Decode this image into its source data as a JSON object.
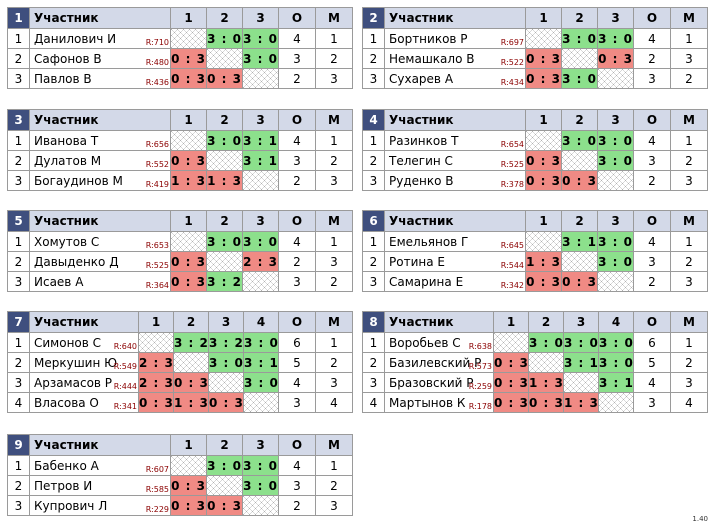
{
  "header_label": "Участник",
  "version": "1.40",
  "groups": [
    {
      "number": "1",
      "cols": [
        "1",
        "2",
        "3"
      ],
      "o_label": "О",
      "m_label": "М",
      "players": [
        {
          "name": "Данилович И",
          "rating": "R:710",
          "cells": [
            "",
            "3 : 0",
            "3 : 0"
          ],
          "o": "4",
          "m": "1"
        },
        {
          "name": "Сафонов В",
          "rating": "R:480",
          "cells": [
            "0 : 3",
            "",
            "3 : 0"
          ],
          "o": "3",
          "m": "2"
        },
        {
          "name": "Павлов В",
          "rating": "R:436",
          "cells": [
            "0 : 3",
            "0 : 3",
            ""
          ],
          "o": "2",
          "m": "3"
        }
      ]
    },
    {
      "number": "2",
      "cols": [
        "1",
        "2",
        "3"
      ],
      "o_label": "О",
      "m_label": "М",
      "players": [
        {
          "name": "Бортников Р",
          "rating": "R:697",
          "cells": [
            "",
            "3 : 0",
            "3 : 0"
          ],
          "o": "4",
          "m": "1"
        },
        {
          "name": "Немашкало В",
          "rating": "R:522",
          "cells": [
            "0 : 3",
            "",
            "0 : 3"
          ],
          "o": "2",
          "m": "3"
        },
        {
          "name": "Сухарев А",
          "rating": "R:434",
          "cells": [
            "0 : 3",
            "3 : 0",
            ""
          ],
          "o": "3",
          "m": "2"
        }
      ]
    },
    {
      "number": "3",
      "cols": [
        "1",
        "2",
        "3"
      ],
      "o_label": "О",
      "m_label": "М",
      "players": [
        {
          "name": "Иванова Т",
          "rating": "R:656",
          "cells": [
            "",
            "3 : 0",
            "3 : 1"
          ],
          "o": "4",
          "m": "1"
        },
        {
          "name": "Дулатов М",
          "rating": "R:552",
          "cells": [
            "0 : 3",
            "",
            "3 : 1"
          ],
          "o": "3",
          "m": "2"
        },
        {
          "name": "Богаудинов М",
          "rating": "R:419",
          "cells": [
            "1 : 3",
            "1 : 3",
            ""
          ],
          "o": "2",
          "m": "3"
        }
      ]
    },
    {
      "number": "4",
      "cols": [
        "1",
        "2",
        "3"
      ],
      "o_label": "О",
      "m_label": "М",
      "players": [
        {
          "name": "Разинков Т",
          "rating": "R:654",
          "cells": [
            "",
            "3 : 0",
            "3 : 0"
          ],
          "o": "4",
          "m": "1"
        },
        {
          "name": "Телегин С",
          "rating": "R:525",
          "cells": [
            "0 : 3",
            "",
            "3 : 0"
          ],
          "o": "3",
          "m": "2"
        },
        {
          "name": "Руденко В",
          "rating": "R:378",
          "cells": [
            "0 : 3",
            "0 : 3",
            ""
          ],
          "o": "2",
          "m": "3"
        }
      ]
    },
    {
      "number": "5",
      "cols": [
        "1",
        "2",
        "3"
      ],
      "o_label": "О",
      "m_label": "М",
      "players": [
        {
          "name": "Хомутов С",
          "rating": "R:653",
          "cells": [
            "",
            "3 : 0",
            "3 : 0"
          ],
          "o": "4",
          "m": "1"
        },
        {
          "name": "Давыденко Д",
          "rating": "R:525",
          "cells": [
            "0 : 3",
            "",
            "2 : 3"
          ],
          "o": "2",
          "m": "3"
        },
        {
          "name": "Исаев А",
          "rating": "R:364",
          "cells": [
            "0 : 3",
            "3 : 2",
            ""
          ],
          "o": "3",
          "m": "2"
        }
      ]
    },
    {
      "number": "6",
      "cols": [
        "1",
        "2",
        "3"
      ],
      "o_label": "О",
      "m_label": "М",
      "players": [
        {
          "name": "Емельянов Г",
          "rating": "R:645",
          "cells": [
            "",
            "3 : 1",
            "3 : 0"
          ],
          "o": "4",
          "m": "1"
        },
        {
          "name": "Ротина Е",
          "rating": "R:544",
          "cells": [
            "1 : 3",
            "",
            "3 : 0"
          ],
          "o": "3",
          "m": "2"
        },
        {
          "name": "Самарина Е",
          "rating": "R:342",
          "cells": [
            "0 : 3",
            "0 : 3",
            ""
          ],
          "o": "2",
          "m": "3"
        }
      ]
    },
    {
      "number": "7",
      "cols": [
        "1",
        "2",
        "3",
        "4"
      ],
      "o_label": "О",
      "m_label": "М",
      "players": [
        {
          "name": "Симонов С",
          "rating": "R:640",
          "cells": [
            "",
            "3 : 2",
            "3 : 2",
            "3 : 0"
          ],
          "o": "6",
          "m": "1"
        },
        {
          "name": "Меркушин Ю",
          "rating": "R:549",
          "cells": [
            "2 : 3",
            "",
            "3 : 0",
            "3 : 1"
          ],
          "o": "5",
          "m": "2"
        },
        {
          "name": "Арзамасов Р",
          "rating": "R:444",
          "cells": [
            "2 : 3",
            "0 : 3",
            "",
            "3 : 0"
          ],
          "o": "4",
          "m": "3"
        },
        {
          "name": "Власова О",
          "rating": "R:341",
          "cells": [
            "0 : 3",
            "1 : 3",
            "0 : 3",
            ""
          ],
          "o": "3",
          "m": "4"
        }
      ]
    },
    {
      "number": "8",
      "cols": [
        "1",
        "2",
        "3",
        "4"
      ],
      "o_label": "О",
      "m_label": "М",
      "players": [
        {
          "name": "Воробьев С",
          "rating": "R:638",
          "cells": [
            "",
            "3 : 0",
            "3 : 0",
            "3 : 0"
          ],
          "o": "6",
          "m": "1"
        },
        {
          "name": "Базилевский Р",
          "rating": "R:573",
          "cells": [
            "0 : 3",
            "",
            "3 : 1",
            "3 : 0"
          ],
          "o": "5",
          "m": "2"
        },
        {
          "name": "Бразовский Р",
          "rating": "R:259",
          "cells": [
            "0 : 3",
            "1 : 3",
            "",
            "3 : 1"
          ],
          "o": "4",
          "m": "3"
        },
        {
          "name": "Мартынов К",
          "rating": "R:178",
          "cells": [
            "0 : 3",
            "0 : 3",
            "1 : 3",
            ""
          ],
          "o": "3",
          "m": "4"
        }
      ]
    },
    {
      "number": "9",
      "cols": [
        "1",
        "2",
        "3"
      ],
      "o_label": "О",
      "m_label": "М",
      "players": [
        {
          "name": "Бабенко А",
          "rating": "R:607",
          "cells": [
            "",
            "3 : 0",
            "3 : 0"
          ],
          "o": "4",
          "m": "1"
        },
        {
          "name": "Петров И",
          "rating": "R:585",
          "cells": [
            "0 : 3",
            "",
            "3 : 0"
          ],
          "o": "3",
          "m": "2"
        },
        {
          "name": "Купрович Л",
          "rating": "R:229",
          "cells": [
            "0 : 3",
            "0 : 3",
            ""
          ],
          "o": "2",
          "m": "3"
        }
      ]
    }
  ]
}
